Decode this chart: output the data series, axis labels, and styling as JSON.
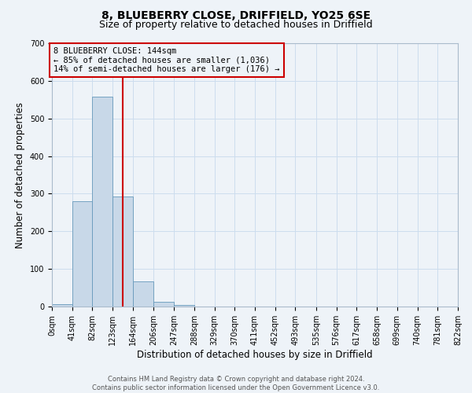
{
  "title_line1": "8, BLUEBERRY CLOSE, DRIFFIELD, YO25 6SE",
  "title_line2": "Size of property relative to detached houses in Driffield",
  "xlabel": "Distribution of detached houses by size in Driffield",
  "ylabel": "Number of detached properties",
  "bin_edges": [
    0,
    41,
    82,
    123,
    164,
    206,
    247,
    288,
    329,
    370,
    411,
    452,
    493,
    535,
    576,
    617,
    658,
    699,
    740,
    781,
    822
  ],
  "bin_counts": [
    7,
    280,
    557,
    292,
    67,
    13,
    5,
    0,
    0,
    0,
    0,
    0,
    0,
    0,
    0,
    0,
    0,
    0,
    0,
    0
  ],
  "bar_color": "#c8d8e8",
  "bar_edge_color": "#6699bb",
  "property_size": 144,
  "vline_color": "#cc0000",
  "annotation_box_edge": "#cc0000",
  "annotation_text_line1": "8 BLUEBERRY CLOSE: 144sqm",
  "annotation_text_line2": "← 85% of detached houses are smaller (1,036)",
  "annotation_text_line3": "14% of semi-detached houses are larger (176) →",
  "ylim": [
    0,
    700
  ],
  "yticks": [
    0,
    100,
    200,
    300,
    400,
    500,
    600,
    700
  ],
  "grid_color": "#ccddee",
  "footer_line1": "Contains HM Land Registry data © Crown copyright and database right 2024.",
  "footer_line2": "Contains public sector information licensed under the Open Government Licence v3.0.",
  "bg_color": "#eef3f8",
  "title_fontsize": 10,
  "subtitle_fontsize": 9,
  "tick_label_fontsize": 7,
  "axis_label_fontsize": 8.5,
  "annotation_fontsize": 7.5,
  "footer_fontsize": 6
}
